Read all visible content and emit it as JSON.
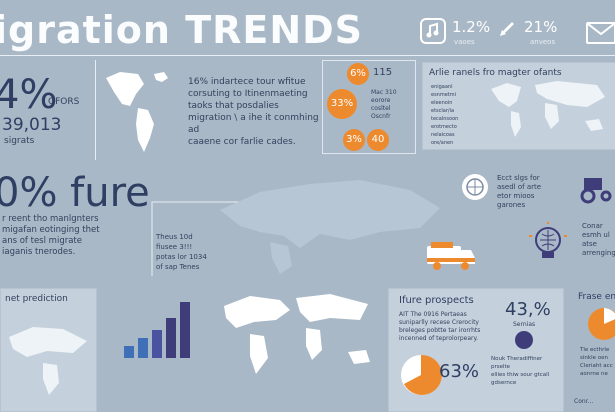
{
  "header": {
    "title": "igration TRENDS",
    "stat1": "1.2%",
    "stat1_sub": "vaoes",
    "stat2": "21%",
    "stat2_sub": "anveos"
  },
  "hero": {
    "percent": "4%",
    "percent_sub": "OFORS",
    "number": "39,013",
    "number_sub": "sigrats"
  },
  "intro_text": [
    "16% indartece tour wfitue",
    "corsuting to Itinenmaeting",
    "taoks that posdalies",
    "migration \\ a ihe it conmhing ad",
    "caaene cor farlie cades."
  ],
  "orange_panel": {
    "c1": "6%",
    "t1": "115",
    "c2": "33%",
    "t2_lines": [
      "Mac 310",
      "eorore",
      "cosltel",
      "Oscnfr"
    ],
    "c3": "3%",
    "t3": "40"
  },
  "map_panel": {
    "title": "Arlie ranels fro magter ofants",
    "legend": [
      "enigaanl",
      "esnmetmi",
      "eleenoin",
      "etsclar/ia",
      "tecalnsoon",
      "erotmecto",
      "nelaicoas",
      "ore/anen"
    ]
  },
  "future": {
    "headline": "0% fure",
    "text": [
      "r reent tho manlgnters",
      "migafan eotinging thet",
      "ans of tesl migrate",
      "iaganis tnerodes."
    ]
  },
  "callout": [
    "Theus 10d",
    "fiusee 3!!!",
    "potas lor 1034",
    "of sap Tenes"
  ],
  "right_notes": {
    "top": [
      "Ecct slgs for",
      "asedl of arte",
      "etor mioos",
      "garones"
    ],
    "bottom": [
      "Conar",
      "esmh ul",
      "atse",
      "arrenging"
    ]
  },
  "bottom_left": {
    "label": "net prediction"
  },
  "prospects": {
    "title": "Ifure prospects",
    "text": [
      "AIT The 0916 Pertaeas",
      "suniparlly recese Crerocity",
      "breleges pobtte tar irorrhts",
      "incenned of teprolorpeary."
    ],
    "pie_percent": "63%",
    "stat_percent": "43,%",
    "stat_sub": "Sernias",
    "stat_text": [
      "Nouk Theradiffiner prselte",
      "ellies thiw sour gtcall",
      "gdsernce"
    ]
  },
  "far_right": {
    "title": "Frase ennt",
    "text": [
      "Tle ecthrle",
      "sinkle oen",
      "Cleriaht acc",
      "aonrne ne"
    ]
  },
  "footer": "Conr..."
}
